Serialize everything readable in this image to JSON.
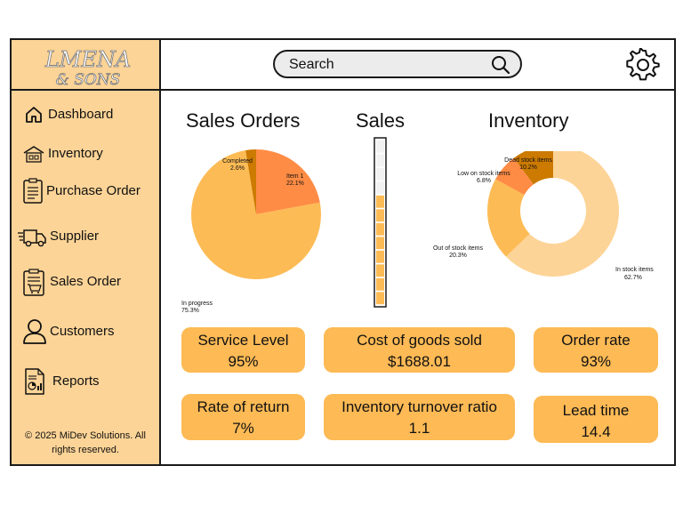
{
  "brand": {
    "line1": "LMENA",
    "line2": "& SONS"
  },
  "search": {
    "placeholder": "Search"
  },
  "sidebar": {
    "items": [
      {
        "label": "Dashboard"
      },
      {
        "label": "Inventory"
      },
      {
        "label": "Purchase Order"
      },
      {
        "label": "Supplier"
      },
      {
        "label": "Sales Order"
      },
      {
        "label": "Customers"
      },
      {
        "label": "Reports"
      }
    ],
    "copyright_line1": "© 2025 MiDev Solutions. All",
    "copyright_line2": "rights reserved."
  },
  "sections": {
    "sales_orders_title": "Sales Orders",
    "sales_title": "Sales",
    "inventory_title": "Inventory"
  },
  "colors": {
    "sidebar_bg": "#fdd497",
    "card_bg": "#fdba55",
    "pie_in_progress": "#fdbb55",
    "pie_item1": "#ff8c45",
    "pie_completed": "#cc7a00",
    "donut_in_stock": "#fdd497",
    "donut_out_of_stock": "#fdbb55",
    "donut_low_stock": "#ff8c45",
    "donut_dead_stock": "#cc7a00",
    "sales_fill": "#fdbb55"
  },
  "chart_data": [
    {
      "type": "pie",
      "title": "Sales Orders",
      "slices": [
        {
          "label": "Item 1",
          "value": 22.1,
          "text": "22.1%"
        },
        {
          "label": "In progress",
          "value": 75.3,
          "text": "75.3%"
        },
        {
          "label": "Completed",
          "value": 2.6,
          "text": "2.6%"
        }
      ]
    },
    {
      "type": "bar",
      "title": "Sales",
      "total_segments": 12,
      "filled_segments": 8
    },
    {
      "type": "pie",
      "title": "Inventory",
      "donut": true,
      "slices": [
        {
          "label": "In stock items",
          "value": 62.7,
          "text": "62.7%"
        },
        {
          "label": "Out of stock items",
          "value": 20.3,
          "text": "20.3%"
        },
        {
          "label": "Low on stock items",
          "value": 6.8,
          "text": "6.8%"
        },
        {
          "label": "Dead stock items",
          "value": 10.2,
          "text": "10.2%"
        }
      ]
    }
  ],
  "kpis": {
    "service_level": {
      "label": "Service Level",
      "value": "95%"
    },
    "cogs": {
      "label": "Cost of goods sold",
      "value": "$1688.01"
    },
    "order_rate": {
      "label": "Order rate",
      "value": "93%"
    },
    "rate_of_return": {
      "label": "Rate of return",
      "value": "7%"
    },
    "turnover": {
      "label": "Inventory turnover ratio",
      "value": "1.1"
    },
    "lead_time": {
      "label": "Lead time",
      "value": "14.4"
    }
  }
}
